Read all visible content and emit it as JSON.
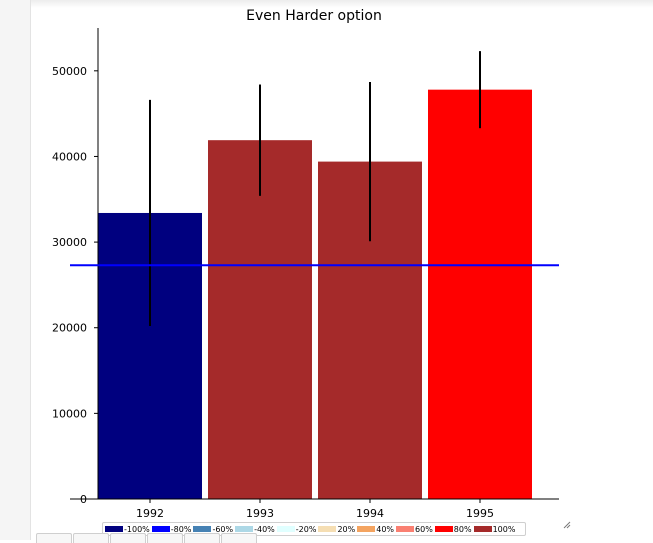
{
  "chart_data": {
    "type": "bar",
    "title": "Even Harder option",
    "categories": [
      "1992",
      "1993",
      "1994",
      "1995"
    ],
    "values": [
      33400,
      41900,
      39400,
      47800
    ],
    "error": [
      13200,
      6500,
      9300,
      4500
    ],
    "bar_colors": [
      "#00007f",
      "#a52a2a",
      "#a52a2a",
      "#ff0000"
    ],
    "reference_line": {
      "value": 27300,
      "color": "#0000ff"
    },
    "yticks": [
      0,
      10000,
      20000,
      30000,
      40000,
      50000
    ],
    "ytick_labels": [
      "0",
      "10000",
      "20000",
      "30000",
      "40000",
      "50000"
    ],
    "ylim": [
      0,
      55000
    ],
    "xlabel": "",
    "ylabel": "",
    "grid": false,
    "legend": {
      "placement": "bottom",
      "entries": [
        {
          "label": "-100%",
          "color": "#00007f"
        },
        {
          "label": "-80%",
          "color": "#0000ff"
        },
        {
          "label": "-60%",
          "color": "#4682b4"
        },
        {
          "label": "-40%",
          "color": "#add8e6"
        },
        {
          "label": "-20%",
          "color": "#e0ffff"
        },
        {
          "label": "20%",
          "color": "#f5deb3"
        },
        {
          "label": "40%",
          "color": "#f4a460"
        },
        {
          "label": "60%",
          "color": "#fa8072"
        },
        {
          "label": "80%",
          "color": "#ff0000"
        },
        {
          "label": "100%",
          "color": "#a52a2a"
        }
      ]
    }
  },
  "icons": {
    "resize": "resize-grip-icon"
  }
}
